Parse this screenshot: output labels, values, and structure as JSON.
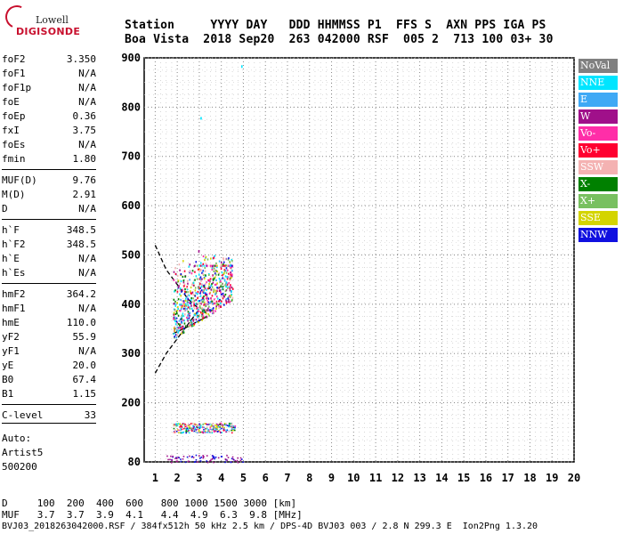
{
  "logo": {
    "top": "Lowell",
    "main": "DIGISONDE"
  },
  "header": {
    "line1": "Station     YYYY DAY   DDD HHMMSS P1  FFS S  AXN PPS IGA PS",
    "line2": "Boa Vista  2018 Sep20  263 042000 RSF  005 2  713 100 03+ 30"
  },
  "params": [
    {
      "label": "foF2",
      "value": "3.350"
    },
    {
      "label": "foF1",
      "value": "N/A"
    },
    {
      "label": "foF1p",
      "value": "N/A"
    },
    {
      "label": "foE",
      "value": "N/A"
    },
    {
      "label": "foEp",
      "value": "0.36"
    },
    {
      "label": "fxI",
      "value": "3.75"
    },
    {
      "label": "foEs",
      "value": "N/A"
    },
    {
      "label": "fmin",
      "value": "1.80"
    },
    {
      "label": "MUF(D)",
      "value": "9.76"
    },
    {
      "label": "M(D)",
      "value": "2.91"
    },
    {
      "label": "D",
      "value": "N/A"
    },
    {
      "label": "h`F",
      "value": "348.5"
    },
    {
      "label": "h`F2",
      "value": "348.5"
    },
    {
      "label": "h`E",
      "value": "N/A"
    },
    {
      "label": "h`Es",
      "value": "N/A"
    },
    {
      "label": "hmF2",
      "value": "364.2"
    },
    {
      "label": "hmF1",
      "value": "N/A"
    },
    {
      "label": "hmE",
      "value": "110.0"
    },
    {
      "label": "yF2",
      "value": "55.9"
    },
    {
      "label": "yF1",
      "value": "N/A"
    },
    {
      "label": "yE",
      "value": "20.0"
    },
    {
      "label": "B0",
      "value": "67.4"
    },
    {
      "label": "B1",
      "value": "1.15"
    },
    {
      "label": "C-level",
      "value": "33"
    }
  ],
  "autoscale": {
    "line1": "Auto:",
    "line2": "Artist5",
    "line3": "500200"
  },
  "legend": [
    {
      "label": "NoVal",
      "color": "#808080"
    },
    {
      "label": "NNE",
      "color": "#00e5ff"
    },
    {
      "label": "E",
      "color": "#3fa9f5"
    },
    {
      "label": "W",
      "color": "#a0108a"
    },
    {
      "label": "Vo-",
      "color": "#ff2ea8"
    },
    {
      "label": "Vo+",
      "color": "#ff0030"
    },
    {
      "label": "SSW",
      "color": "#f4b2b2"
    },
    {
      "label": "X-",
      "color": "#008000"
    },
    {
      "label": "X+",
      "color": "#78c060"
    },
    {
      "label": "SSE",
      "color": "#d4d400"
    },
    {
      "label": "NNW",
      "color": "#1010e0"
    }
  ],
  "table": {
    "row1": "D     100  200  400  600   800 1000 1500 3000 [km]",
    "row2": "MUF   3.7  3.7  3.9  4.1   4.4  4.9  6.3  9.8 [MHz]"
  },
  "footer": "BVJ03_2018263042000.RSF / 384fx512h 50 kHz 2.5 km / DPS-4D BVJ03 003 / 2.8 N 299.3 E  Ion2Png 1.3.20",
  "chart_data": {
    "type": "scatter",
    "title": "",
    "xlabel": "",
    "ylabel": "",
    "xlim": [
      0.5,
      20
    ],
    "ylim": [
      80,
      900
    ],
    "x_ticks": [
      1,
      2,
      3,
      4,
      5,
      6,
      7,
      8,
      9,
      10,
      11,
      12,
      13,
      14,
      15,
      16,
      17,
      18,
      19,
      20
    ],
    "y_ticks": [
      80,
      200,
      300,
      400,
      500,
      600,
      700,
      800,
      900
    ],
    "grid": true,
    "traces": [
      {
        "name": "F2 trace",
        "x_range": [
          1.8,
          4.5
        ],
        "y_range": [
          330,
          480
        ]
      },
      {
        "name": "Es trace low",
        "x_range": [
          1.8,
          4.6
        ],
        "y_range": [
          140,
          160
        ]
      },
      {
        "name": "bottom trace",
        "x_range": [
          1.5,
          5.0
        ],
        "y_range": [
          80,
          95
        ]
      }
    ],
    "profile_curves": [
      {
        "style": "dashed",
        "points": [
          [
            1.0,
            520
          ],
          [
            1.5,
            470
          ],
          [
            2.0,
            440
          ],
          [
            2.5,
            410
          ],
          [
            3.0,
            390
          ]
        ]
      },
      {
        "style": "dashed",
        "points": [
          [
            1.0,
            260
          ],
          [
            1.5,
            300
          ],
          [
            2.0,
            330
          ],
          [
            2.5,
            360
          ],
          [
            3.0,
            390
          ]
        ]
      },
      {
        "style": "solid",
        "points": [
          [
            1.8,
            340
          ],
          [
            2.5,
            355
          ],
          [
            3.35,
            375
          ]
        ]
      }
    ]
  }
}
